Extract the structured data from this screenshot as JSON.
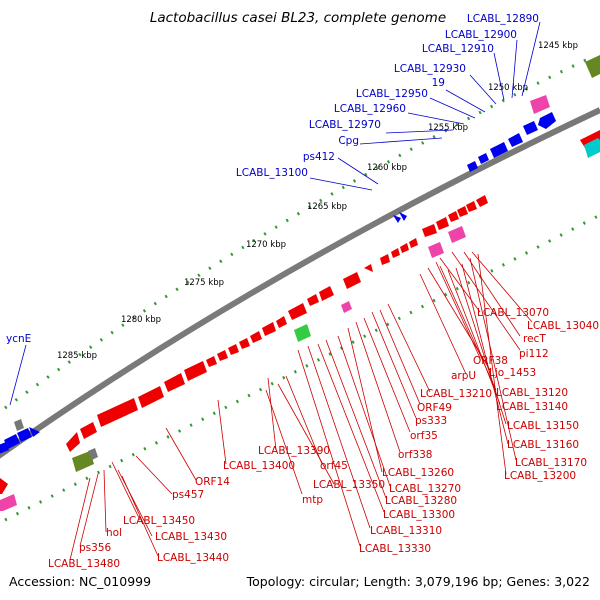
{
  "title": "Lactobacillus casei BL23, complete genome",
  "footer": {
    "accession": "Accession: NC_010999",
    "summary": "Topology: circular; Length: 3,079,196 bp; Genes: 3,022"
  },
  "ticks": [
    "1245 kbp",
    "1250 kbp",
    "1255 kbp",
    "1260 kbp",
    "1265 kbp",
    "1270 kbp",
    "1275 kbp",
    "1280 kbp",
    "1285 kbp"
  ],
  "blue_labels": [
    "LCABL_12890",
    "LCABL_12900",
    "LCABL_12910",
    "LCABL_12930",
    "19",
    "LCABL_12950",
    "LCABL_12960",
    "LCABL_12970",
    "Cpg",
    "ps412",
    "LCABL_13100",
    "ycnE"
  ],
  "red_labels": [
    "LCABL_13070",
    "LCABL_13040",
    "recT",
    "pi112",
    "ORF38",
    "Ljo_1453",
    "arpU",
    "LCABL_13120",
    "LCABL_13210",
    "LCABL_13140",
    "ORF49",
    "ps333",
    "LCABL_13150",
    "orf35",
    "LCABL_13160",
    "orf338",
    "LCABL_13170",
    "LCABL_13200",
    "LCABL_13260",
    "LCABL_13270",
    "LCABL_13280",
    "LCABL_13300",
    "LCABL_13310",
    "LCABL_13330",
    "LCABL_13390",
    "orf45",
    "LCABL_13400",
    "LCABL_13350",
    "mtp",
    "ORF14",
    "ps457",
    "LCABL_13450",
    "LCABL_13430",
    "LCABL_13440",
    "hol",
    "ps356",
    "LCABL_13480"
  ],
  "colors": {
    "forward_gene": "#0000ee",
    "reverse_gene": "#ee0000",
    "trna": "#ee44aa",
    "rrna": "#00cccc",
    "misc": "#668822",
    "other": "#33cc44",
    "backbone": "#888888",
    "tick_mark": "#339933"
  }
}
